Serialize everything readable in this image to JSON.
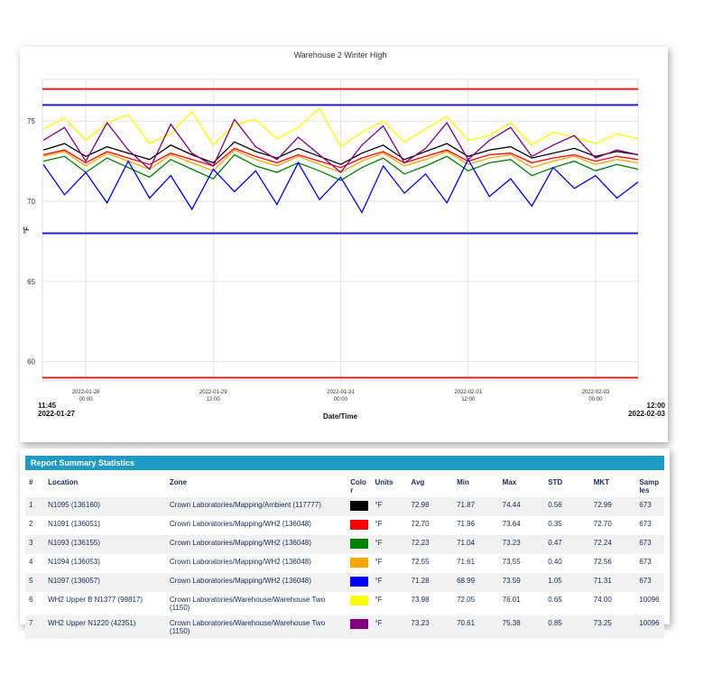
{
  "chart_data": {
    "type": "line",
    "title": "Warehouse 2 Winter High",
    "x_label": "Date/Time",
    "y_label": "°F",
    "x": [
      "2022-01-27 12:00",
      "2022-01-27 18:00",
      "2022-01-28 00:00",
      "2022-01-28 06:00",
      "2022-01-28 12:00",
      "2022-01-28 18:00",
      "2022-01-29 00:00",
      "2022-01-29 06:00",
      "2022-01-29 12:00",
      "2022-01-29 18:00",
      "2022-01-30 00:00",
      "2022-01-30 06:00",
      "2022-01-30 12:00",
      "2022-01-30 18:00",
      "2022-01-31 00:00",
      "2022-01-31 06:00",
      "2022-01-31 12:00",
      "2022-01-31 18:00",
      "2022-02-01 00:00",
      "2022-02-01 06:00",
      "2022-02-01 12:00",
      "2022-02-01 18:00",
      "2022-02-02 00:00",
      "2022-02-02 06:00",
      "2022-02-02 12:00",
      "2022-02-02 18:00",
      "2022-02-03 00:00",
      "2022-02-03 06:00",
      "2022-02-03 12:00"
    ],
    "xlim": [
      "2022-01-27 11:45",
      "2022-02-03 12:00"
    ],
    "xticks": [
      "2022-01-28 00:00",
      "2022-01-29 12:00",
      "2022-01-31 00:00",
      "2022-02-01 12:00",
      "2022-02-03 00:00"
    ],
    "ylim": [
      58.8,
      77.6
    ],
    "yticks": [
      60,
      65,
      70,
      75
    ],
    "grid": true,
    "reference_lines": [
      {
        "value": 77,
        "color": "#e02020"
      },
      {
        "value": 76,
        "color": "#2020d0"
      },
      {
        "value": 68,
        "color": "#2020d0"
      },
      {
        "value": 59,
        "color": "#e02020"
      }
    ],
    "series": [
      {
        "name": "WH2 Upper B N1377 (99817)",
        "color": "#ffff00",
        "values": [
          74.5,
          75.2,
          73.8,
          74.9,
          75.4,
          73.6,
          74.2,
          75.6,
          73.5,
          74.8,
          75.1,
          73.9,
          74.6,
          75.8,
          73.4,
          74.3,
          75.0,
          73.7,
          74.5,
          75.3,
          73.8,
          74.1,
          74.9,
          73.5,
          74.3,
          74.0,
          73.6,
          74.2,
          73.9
        ]
      },
      {
        "name": "N1095 (136160)",
        "color": "#000000",
        "values": [
          73.2,
          73.6,
          72.8,
          73.4,
          73.0,
          72.6,
          73.5,
          72.9,
          72.4,
          73.7,
          73.1,
          72.7,
          73.3,
          72.8,
          72.3,
          73.0,
          73.5,
          72.6,
          73.1,
          73.6,
          72.8,
          73.2,
          73.4,
          72.7,
          73.0,
          73.3,
          72.8,
          73.1,
          72.9
        ]
      },
      {
        "name": "N1091 (136051)",
        "color": "#ff0000",
        "values": [
          72.9,
          73.2,
          72.4,
          73.1,
          72.7,
          72.3,
          73.0,
          72.6,
          72.2,
          73.3,
          72.8,
          72.4,
          72.9,
          72.5,
          72.1,
          72.7,
          73.1,
          72.4,
          72.8,
          73.2,
          72.5,
          72.9,
          73.0,
          72.4,
          72.7,
          72.9,
          72.5,
          72.8,
          72.6
        ]
      },
      {
        "name": "N1094 (136053)",
        "color": "#ffa500",
        "values": [
          72.8,
          73.1,
          72.2,
          73.0,
          72.5,
          72.0,
          72.9,
          72.4,
          71.9,
          73.2,
          72.6,
          72.2,
          72.8,
          72.3,
          71.8,
          72.5,
          73.0,
          72.2,
          72.6,
          73.1,
          72.3,
          72.7,
          72.9,
          72.1,
          72.5,
          72.8,
          72.3,
          72.6,
          72.4
        ]
      },
      {
        "name": "N1093 (136155)",
        "color": "#008000",
        "values": [
          72.5,
          72.8,
          71.8,
          72.7,
          72.1,
          71.5,
          72.6,
          72.0,
          71.4,
          72.9,
          72.2,
          71.8,
          72.4,
          71.9,
          71.3,
          72.1,
          72.7,
          71.7,
          72.2,
          72.8,
          71.9,
          72.4,
          72.6,
          71.6,
          72.1,
          72.5,
          71.9,
          72.3,
          72.0
        ]
      },
      {
        "name": "N1097 (136057)",
        "color": "#0000ff",
        "values": [
          72.3,
          70.4,
          71.8,
          69.9,
          72.5,
          70.2,
          71.6,
          69.5,
          72.0,
          70.6,
          71.9,
          69.8,
          72.4,
          70.1,
          71.5,
          69.3,
          72.2,
          70.5,
          71.7,
          69.9,
          72.6,
          70.3,
          71.4,
          69.7,
          72.1,
          70.8,
          71.6,
          70.2,
          71.2
        ]
      },
      {
        "name": "WH2 Upper N1220 (42351)",
        "color": "#800080",
        "values": [
          73.8,
          74.6,
          72.5,
          74.9,
          73.2,
          72.0,
          74.8,
          73.0,
          72.2,
          75.1,
          73.4,
          72.6,
          74.0,
          72.9,
          71.8,
          73.5,
          74.7,
          72.4,
          73.3,
          74.9,
          72.6,
          73.8,
          74.6,
          72.8,
          73.5,
          74.1,
          72.7,
          73.2,
          72.9
        ]
      }
    ]
  },
  "table": {
    "title": "Report Summary Statistics",
    "columns": [
      "#",
      "Location",
      "Zone",
      "Color",
      "Units",
      "Avg",
      "Min",
      "Max",
      "STD",
      "MKT",
      "Samples"
    ],
    "rows": [
      {
        "series": 1,
        "num": "1",
        "zone": "Crown Laboratories/Mapping/Ambient (117777)",
        "units": "°F",
        "avg": "72.98",
        "min": "71.87",
        "max": "74.44",
        "std": "0.56",
        "mkt": "72.99",
        "samples": "673"
      },
      {
        "series": 2,
        "num": "2",
        "zone": "Crown Laboratories/Mapping/WH2 (136048)",
        "units": "°F",
        "avg": "72.70",
        "min": "71.96",
        "max": "73.64",
        "std": "0.35",
        "mkt": "72.70",
        "samples": "673"
      },
      {
        "series": 4,
        "num": "3",
        "zone": "Crown Laboratories/Mapping/WH2 (136048)",
        "units": "°F",
        "avg": "72.23",
        "min": "71.04",
        "max": "73.23",
        "std": "0.47",
        "mkt": "72.24",
        "samples": "673"
      },
      {
        "series": 3,
        "num": "4",
        "zone": "Crown Laboratories/Mapping/WH2 (136048)",
        "units": "°F",
        "avg": "72.55",
        "min": "71.61",
        "max": "73.55",
        "std": "0.40",
        "mkt": "72.56",
        "samples": "673"
      },
      {
        "series": 5,
        "num": "5",
        "zone": "Crown Laboratories/Mapping/WH2 (136048)",
        "units": "°F",
        "avg": "71.28",
        "min": "68.99",
        "max": "73.59",
        "std": "1.05",
        "mkt": "71.31",
        "samples": "673"
      },
      {
        "series": 0,
        "num": "6",
        "zone": "Crown Laboratories/Warehouse/Warehouse Two (1150)",
        "units": "°F",
        "avg": "73.98",
        "min": "72.05",
        "max": "76.01",
        "std": "0.65",
        "mkt": "74.00",
        "samples": "10096"
      },
      {
        "series": 6,
        "num": "7",
        "zone": "Crown Laboratories/Warehouse/Warehouse Two (1150)",
        "units": "°F",
        "avg": "73.23",
        "min": "70.61",
        "max": "75.38",
        "std": "0.85",
        "mkt": "73.25",
        "samples": "10096"
      }
    ]
  }
}
